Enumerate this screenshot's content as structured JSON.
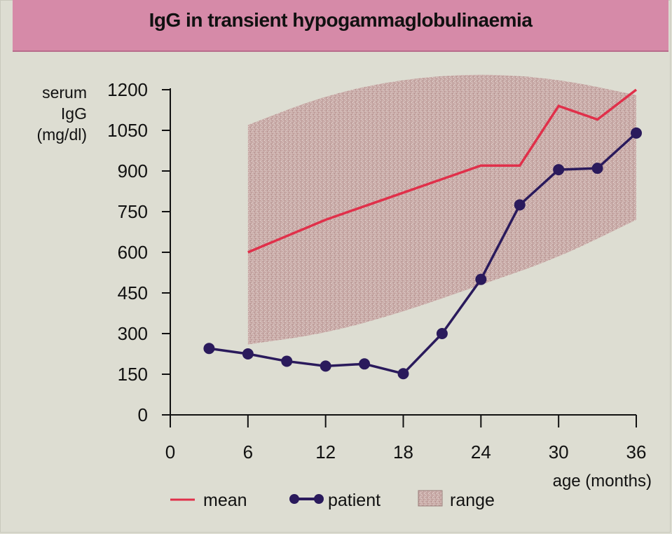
{
  "chart_data": {
    "type": "line",
    "title": "IgG in transient hypogammaglobulinaemia",
    "ylabel": [
      "serum",
      "IgG",
      "(mg/dl)"
    ],
    "xlabel": "age (months)",
    "xlim": [
      0,
      36
    ],
    "ylim": [
      0,
      1200
    ],
    "xticks": [
      0,
      6,
      12,
      18,
      24,
      30,
      36
    ],
    "yticks": [
      0,
      150,
      300,
      450,
      600,
      750,
      900,
      1050,
      1200
    ],
    "series": [
      {
        "name": "mean",
        "color": "#e0304a",
        "x": [
          6,
          12,
          18,
          24,
          27,
          30,
          33,
          36
        ],
        "y": [
          600,
          720,
          820,
          920,
          920,
          1140,
          1090,
          1200
        ]
      },
      {
        "name": "patient",
        "color": "#2a1a5c",
        "x": [
          3,
          6,
          9,
          12,
          15,
          18,
          21,
          24,
          27,
          30,
          33,
          36
        ],
        "y": [
          245,
          225,
          198,
          180,
          188,
          152,
          300,
          500,
          775,
          905,
          910,
          1040
        ]
      }
    ],
    "range": {
      "name": "range",
      "color": "#c8a6a4",
      "x": [
        6,
        12,
        18,
        24,
        30,
        36
      ],
      "upper": [
        1070,
        1180,
        1240,
        1260,
        1240,
        1180
      ],
      "lower": [
        260,
        300,
        380,
        480,
        580,
        720
      ]
    },
    "legend": {
      "placement": "bottom-left",
      "items": [
        "mean",
        "patient",
        "range"
      ]
    }
  }
}
